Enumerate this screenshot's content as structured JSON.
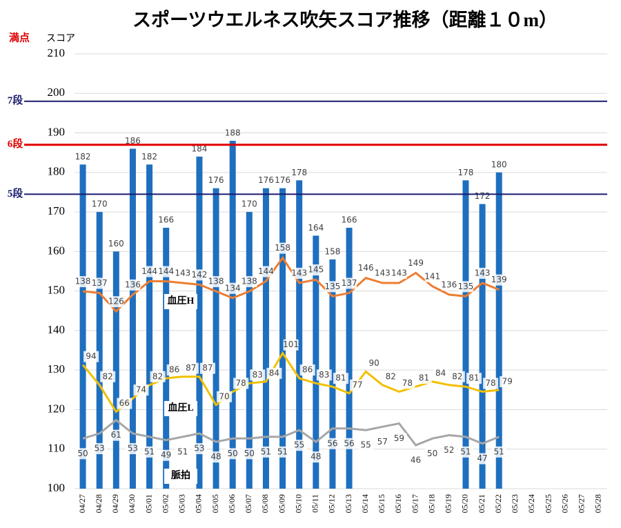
{
  "chart_data": {
    "type": "bar",
    "title": "スポーツウエルネス吹矢スコア推移（距離１０m）",
    "y_label": "スコア",
    "annotation": "満点",
    "categories": [
      "04/27",
      "04/28",
      "04/29",
      "04/30",
      "05/01",
      "05/02",
      "05/03",
      "05/04",
      "05/05",
      "05/06",
      "05/07",
      "05/08",
      "05/09",
      "05/10",
      "05/11",
      "05/12",
      "05/13",
      "05/14",
      "05/15",
      "05/16",
      "05/17",
      "05/18",
      "05/19",
      "05/20",
      "05/21",
      "05/22",
      "05/23",
      "05/24",
      "05/25",
      "05/26",
      "05/27",
      "05/28"
    ],
    "values": [
      182,
      170,
      160,
      186,
      182,
      166,
      null,
      184,
      176,
      188,
      170,
      176,
      176,
      178,
      164,
      158,
      166,
      null,
      null,
      null,
      null,
      null,
      null,
      178,
      172,
      180,
      null,
      null,
      null,
      null,
      null,
      null
    ],
    "color": "#1f6fbf",
    "line_series": [
      {
        "name": "血圧H",
        "color": "#ed7d31",
        "axis": "y2",
        "values": [
          138,
          137,
          126,
          136,
          144,
          144,
          143,
          142,
          138,
          134,
          138,
          144,
          158,
          143,
          145,
          135,
          137,
          146,
          143,
          143,
          149,
          141,
          136,
          135,
          143,
          139,
          null,
          null,
          null,
          null,
          null,
          null
        ]
      },
      {
        "name": "血圧L",
        "color": "#f2c000",
        "axis": "y2",
        "values": [
          94,
          82,
          66,
          74,
          82,
          86,
          87,
          87,
          70,
          78,
          83,
          84,
          101,
          86,
          83,
          81,
          77,
          90,
          82,
          78,
          81,
          84,
          82,
          81,
          78,
          79,
          null,
          null,
          null,
          null,
          null,
          null
        ]
      },
      {
        "name": "脈拍",
        "color": "#a6a6a6",
        "axis": "y2",
        "values": [
          50,
          53,
          61,
          53,
          51,
          49,
          51,
          53,
          48,
          50,
          50,
          51,
          51,
          55,
          48,
          56,
          56,
          55,
          57,
          59,
          46,
          50,
          52,
          51,
          47,
          51,
          null,
          null,
          null,
          null,
          null,
          null
        ]
      }
    ],
    "reference_lines": [
      {
        "label": "7段",
        "value": 198,
        "color": "#1a1a6e"
      },
      {
        "label": "6段",
        "value": 187,
        "color": "#e00000"
      },
      {
        "label": "5段",
        "value": 174.5,
        "color": "#1a1a6e"
      }
    ],
    "ylim": [
      100,
      210
    ],
    "yticks": [
      100,
      110,
      120,
      130,
      140,
      150,
      160,
      170,
      180,
      190,
      200,
      210
    ],
    "y2lim": [
      20,
      280
    ],
    "grid": true
  }
}
